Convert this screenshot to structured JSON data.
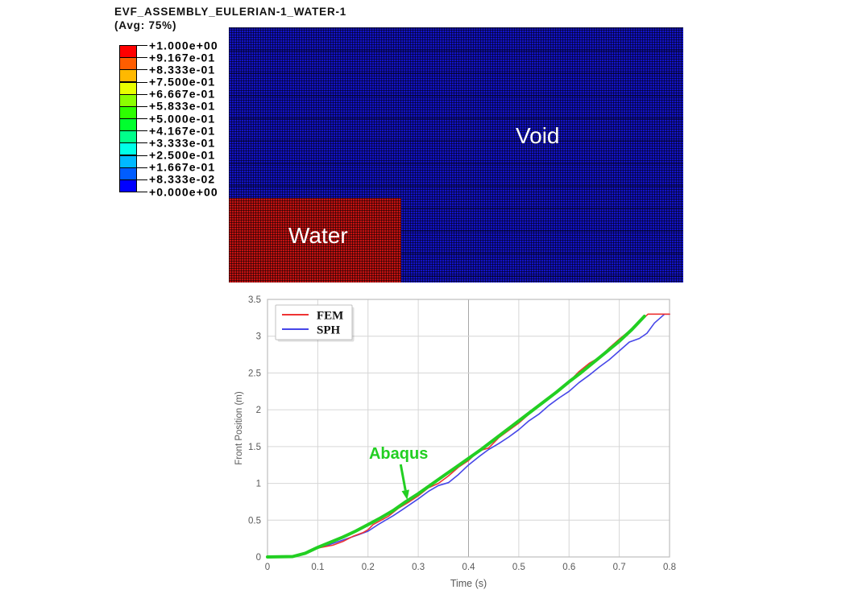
{
  "viewport": {
    "title": "EVF_ASSEMBLY_EULERIAN-1_WATER-1",
    "subtitle": "(Avg: 75%)",
    "colorbar": {
      "labels": [
        "+1.000e+00",
        "+9.167e-01",
        "+8.333e-01",
        "+7.500e-01",
        "+6.667e-01",
        "+5.833e-01",
        "+5.000e-01",
        "+4.167e-01",
        "+3.333e-01",
        "+2.500e-01",
        "+1.667e-01",
        "+8.333e-02",
        "+0.000e+00"
      ],
      "colors": [
        "#FF0000",
        "#FF5D00",
        "#FFB900",
        "#E8FF00",
        "#8BFF00",
        "#2EFF00",
        "#00FF2E",
        "#00FF8B",
        "#00FFE8",
        "#00B9FF",
        "#005DFF",
        "#0000FF"
      ]
    }
  },
  "contour": {
    "void_label": "Void",
    "water_label": "Water",
    "void_color": "#1212c6",
    "water_color": "#c41111"
  },
  "chart_data": {
    "type": "line",
    "xlabel": "Time (s)",
    "ylabel": "Front Position (m)",
    "xlim": [
      0,
      0.8
    ],
    "ylim": [
      0,
      3.5
    ],
    "xticks": [
      0,
      0.1,
      0.2,
      0.3,
      0.4,
      0.5,
      0.6,
      0.7,
      0.8
    ],
    "xtick_labels": [
      "0",
      "0.1",
      "0.2",
      "0.3",
      "0.4",
      "0.5",
      "0.6",
      "0.7",
      "0.8"
    ],
    "yticks": [
      0,
      0.5,
      1,
      1.5,
      2,
      2.5,
      3,
      3.5
    ],
    "ytick_labels": [
      "0",
      "0.5",
      "1",
      "1.5",
      "2",
      "2.5",
      "3",
      "3.5"
    ],
    "grid": true,
    "dark_gridline_x": 0.4,
    "legend_position": "top-left",
    "colors": {
      "grid_light": "#d6d6d6",
      "grid_dark": "#a6a6a6",
      "border": "#bdbdbd",
      "tick_text": "#595959"
    },
    "series": [
      {
        "name": "SPH",
        "color": "#4646e8",
        "width": 1.6,
        "in_legend": true,
        "x": [
          0,
          0.05,
          0.08,
          0.1,
          0.12,
          0.15,
          0.18,
          0.2,
          0.22,
          0.25,
          0.27,
          0.3,
          0.32,
          0.34,
          0.36,
          0.38,
          0.4,
          0.42,
          0.44,
          0.46,
          0.48,
          0.5,
          0.52,
          0.54,
          0.56,
          0.58,
          0.6,
          0.62,
          0.64,
          0.66,
          0.68,
          0.7,
          0.72,
          0.74,
          0.755,
          0.77,
          0.79,
          0.8
        ],
        "y": [
          0,
          0.01,
          0.07,
          0.12,
          0.16,
          0.23,
          0.3,
          0.35,
          0.44,
          0.56,
          0.65,
          0.79,
          0.89,
          0.97,
          1.01,
          1.12,
          1.25,
          1.36,
          1.46,
          1.54,
          1.63,
          1.73,
          1.85,
          1.94,
          2.06,
          2.16,
          2.25,
          2.37,
          2.47,
          2.58,
          2.68,
          2.8,
          2.92,
          2.97,
          3.04,
          3.18,
          3.3,
          3.3
        ]
      },
      {
        "name": "FEM",
        "color": "#ee3333",
        "width": 1.6,
        "in_legend": true,
        "x": [
          0,
          0.05,
          0.08,
          0.1,
          0.13,
          0.15,
          0.17,
          0.19,
          0.2,
          0.21,
          0.24,
          0.26,
          0.28,
          0.3,
          0.32,
          0.34,
          0.36,
          0.38,
          0.4,
          0.42,
          0.44,
          0.46,
          0.48,
          0.5,
          0.52,
          0.54,
          0.56,
          0.58,
          0.6,
          0.62,
          0.64,
          0.66,
          0.68,
          0.7,
          0.72,
          0.74,
          0.757,
          0.8
        ],
        "y": [
          0,
          0.005,
          0.06,
          0.12,
          0.16,
          0.21,
          0.28,
          0.33,
          0.37,
          0.44,
          0.55,
          0.66,
          0.74,
          0.83,
          0.94,
          1.0,
          1.1,
          1.22,
          1.31,
          1.44,
          1.48,
          1.62,
          1.72,
          1.82,
          1.94,
          2.06,
          2.16,
          2.27,
          2.38,
          2.52,
          2.63,
          2.71,
          2.84,
          2.96,
          3.07,
          3.19,
          3.3,
          3.3
        ]
      },
      {
        "name": "Abaqus",
        "color": "#22cf22",
        "width": 4,
        "in_legend": false,
        "x": [
          0,
          0.05,
          0.075,
          0.1,
          0.125,
          0.15,
          0.175,
          0.2,
          0.225,
          0.25,
          0.275,
          0.3,
          0.325,
          0.35,
          0.375,
          0.4,
          0.425,
          0.45,
          0.475,
          0.5,
          0.525,
          0.55,
          0.575,
          0.6,
          0.625,
          0.65,
          0.675,
          0.7,
          0.725,
          0.75
        ],
        "y": [
          0,
          0.005,
          0.05,
          0.13,
          0.2,
          0.27,
          0.35,
          0.44,
          0.53,
          0.63,
          0.75,
          0.86,
          0.98,
          1.1,
          1.22,
          1.34,
          1.46,
          1.59,
          1.72,
          1.85,
          1.98,
          2.11,
          2.24,
          2.38,
          2.51,
          2.65,
          2.79,
          2.93,
          3.09,
          3.27
        ]
      }
    ],
    "legend": {
      "entries": [
        "FEM",
        "SPH"
      ]
    },
    "annotation": {
      "text": "Abaqus",
      "color": "#22cf22",
      "text_x": 0.202,
      "text_y": 1.335,
      "arrow_from": [
        0.265,
        1.258
      ],
      "arrow_to": [
        0.278,
        0.776
      ]
    }
  }
}
